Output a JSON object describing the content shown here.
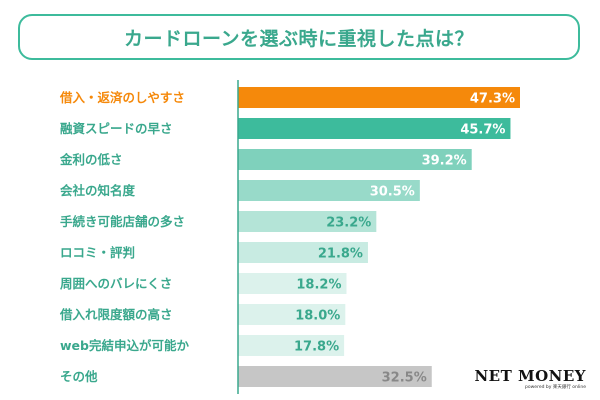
{
  "chart_data": {
    "type": "bar",
    "orientation": "horizontal",
    "title": "カードローンを選ぶ時に重視した点は？",
    "categories": [
      "借入・返済のしやすさ",
      "融資スピードの早さ",
      "金利の低さ",
      "会社の知名度",
      "手続き可能店舗の多さ",
      "ロコミ・評判",
      "周囲へのバレにくさ",
      "借入れ限度額の高さ",
      "web完結申込が可能か",
      "その他"
    ],
    "values": [
      47.3,
      45.7,
      39.2,
      30.5,
      23.2,
      21.8,
      18.2,
      18.0,
      17.8,
      32.5
    ],
    "value_labels": [
      "47.3%",
      "45.7%",
      "39.2%",
      "30.5%",
      "23.2%",
      "21.8%",
      "18.2%",
      "18.0%",
      "17.8%",
      "32.5%"
    ],
    "xlim": [
      0,
      60
    ],
    "colors": [
      "#f5890b",
      "#3dbb9c",
      "#7fd1bc",
      "#98dac9",
      "#b4e4d7",
      "#c8ebe2",
      "#dcf2ec",
      "#dcf2ec",
      "#dcf2ec",
      "#c6c6c6"
    ],
    "label_colors": [
      "#f5890b",
      "#3aa88d",
      "#3aa88d",
      "#3aa88d",
      "#3aa88d",
      "#3aa88d",
      "#3aa88d",
      "#3aa88d",
      "#3aa88d",
      "#3aa88d"
    ],
    "value_text_colors": [
      "#ffffff",
      "#ffffff",
      "#ffffff",
      "#ffffff",
      "#3aa88d",
      "#3aa88d",
      "#3aa88d",
      "#3aa88d",
      "#3aa88d",
      "#888888"
    ]
  },
  "branding": {
    "logo": "NET MONEY",
    "tagline": "powered by 楽天銀行 online"
  }
}
